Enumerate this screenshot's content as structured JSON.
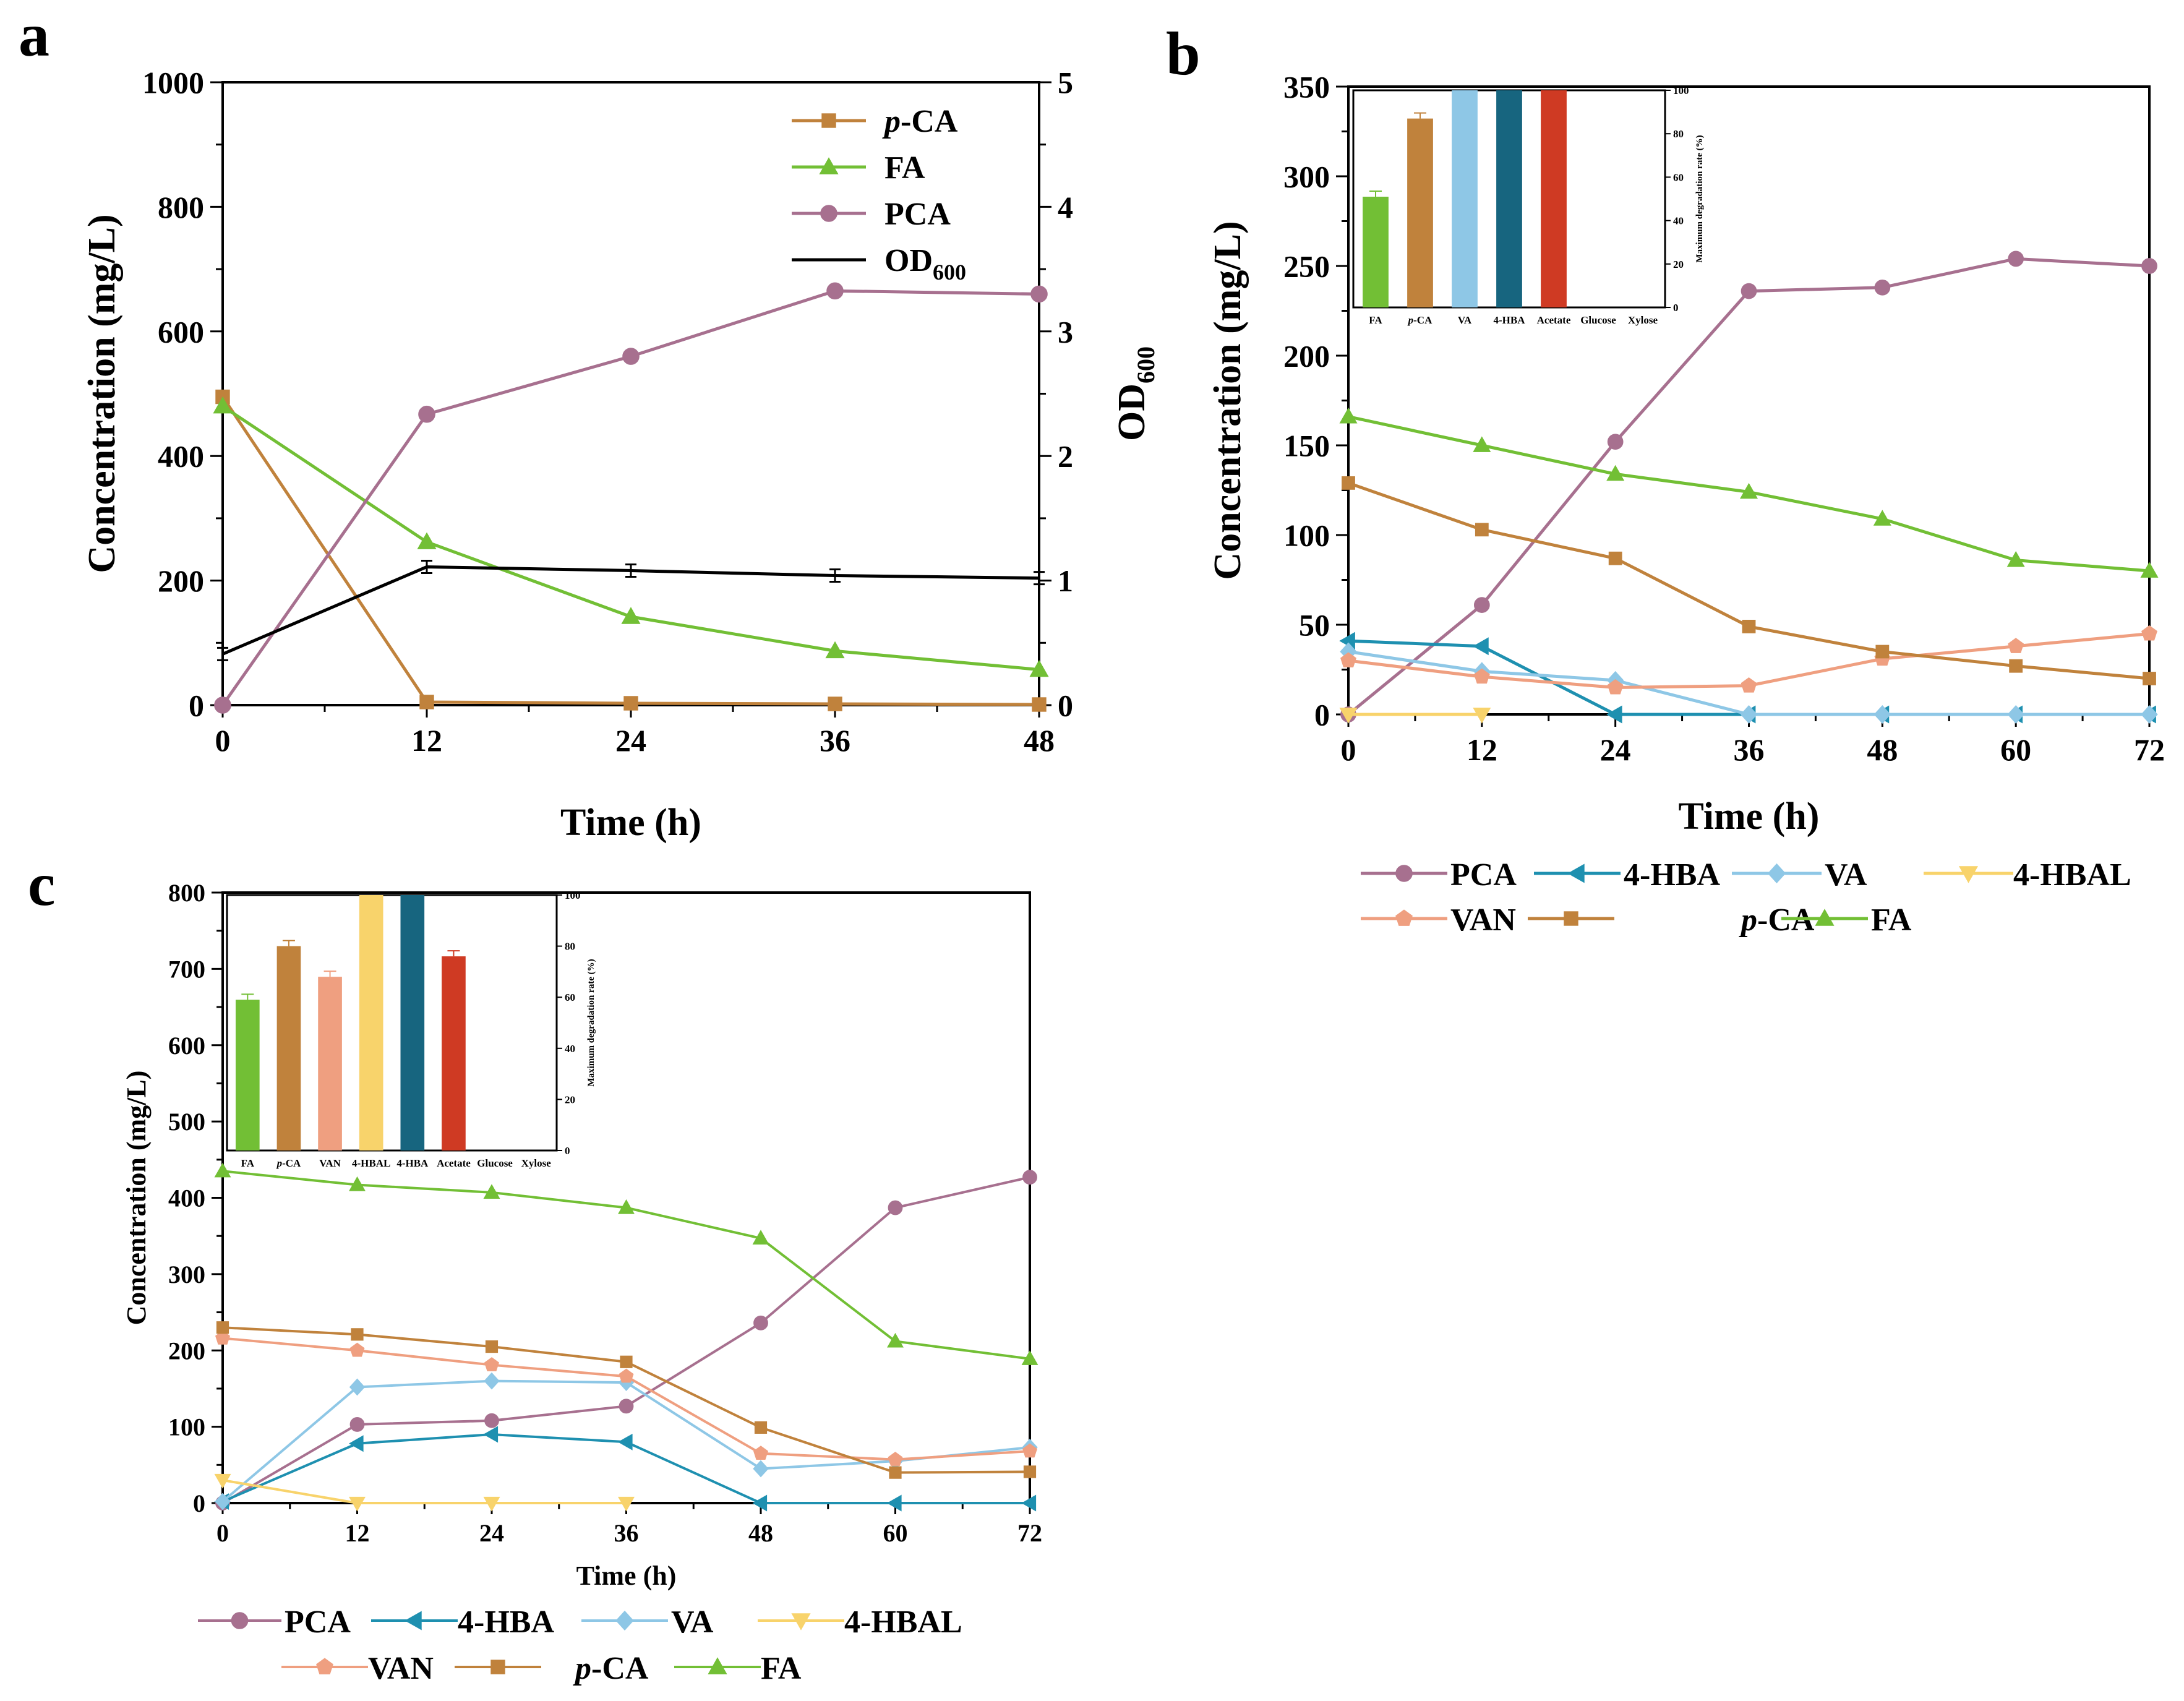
{
  "colors": {
    "p-CA": "#c0823c",
    "FA": "#72bf35",
    "PCA": "#a7708f",
    "OD600": "#000000",
    "4-HBA": "#1e90b0",
    "VA": "#8ec7e6",
    "4-HBAL": "#f8d36b",
    "VAN": "#ef9f80",
    "Acetate": "#cf3a23",
    "4-HBA-bar": "#17657f"
  },
  "chart_data": [
    {
      "panel": "a",
      "type": "line",
      "xlabel": "Time (h)",
      "ylabel": "Concentration (mg/L)",
      "y2label": "OD",
      "y2label_sub": "600",
      "xlim": [
        0,
        48
      ],
      "ylim": [
        0,
        1000
      ],
      "y2lim": [
        0,
        5
      ],
      "xticks": [
        "0",
        "12",
        "24",
        "36",
        "48"
      ],
      "yticks": [
        "0",
        "200",
        "400",
        "600",
        "800",
        "1000"
      ],
      "y2ticks": [
        "0",
        "1",
        "2",
        "3",
        "4",
        "5"
      ],
      "x": [
        0,
        12,
        24,
        36,
        48
      ],
      "series": [
        {
          "name": "p-CA",
          "prefix": "p",
          "rest": "-CA",
          "marker": "square",
          "values": [
            495,
            5,
            3,
            2,
            1
          ]
        },
        {
          "name": "FA",
          "prefix": "",
          "rest": "FA",
          "marker": "triangle-up",
          "values": [
            480,
            262,
            142,
            87,
            57
          ]
        },
        {
          "name": "PCA",
          "prefix": "",
          "rest": "PCA",
          "marker": "circle",
          "values": [
            0,
            467,
            560,
            665,
            660
          ]
        },
        {
          "name": "OD600",
          "prefix": "",
          "rest": "OD",
          "sub": "600",
          "marker": "none",
          "axis": "y2",
          "values": [
            0.41,
            1.11,
            1.08,
            1.04,
            1.02
          ]
        }
      ]
    },
    {
      "panel": "b",
      "type": "line",
      "xlabel": "Time (h)",
      "ylabel": "Concentration (mg/L)",
      "xlim": [
        0,
        72
      ],
      "ylim": [
        0,
        350
      ],
      "xticks": [
        "0",
        "12",
        "24",
        "36",
        "48",
        "60",
        "72"
      ],
      "yticks": [
        "0",
        "50",
        "100",
        "150",
        "200",
        "250",
        "300",
        "350"
      ],
      "x": [
        0,
        12,
        24,
        36,
        48,
        60,
        72
      ],
      "series": [
        {
          "name": "PCA",
          "prefix": "",
          "rest": "PCA",
          "marker": "circle",
          "values": [
            0,
            61,
            152,
            236,
            238,
            254,
            250
          ]
        },
        {
          "name": "4-HBA",
          "prefix": "",
          "rest": "4-HBA",
          "marker": "triangle-left",
          "values": [
            41,
            38,
            0,
            0,
            0,
            0,
            0
          ]
        },
        {
          "name": "VA",
          "prefix": "",
          "rest": "VA",
          "marker": "diamond",
          "values": [
            35,
            24,
            19,
            0,
            0,
            0,
            0
          ]
        },
        {
          "name": "4-HBAL",
          "prefix": "",
          "rest": "4-HBAL",
          "marker": "triangle-down",
          "values": [
            0,
            0,
            null,
            null,
            null,
            null,
            null
          ]
        },
        {
          "name": "VAN",
          "prefix": "",
          "rest": "VAN",
          "marker": "pentagon",
          "values": [
            30,
            21,
            15,
            16,
            31,
            38,
            45
          ]
        },
        {
          "name": "p-CA",
          "prefix": "p",
          "rest": "-CA",
          "marker": "square",
          "values": [
            129,
            103,
            87,
            49,
            35,
            27,
            20
          ]
        },
        {
          "name": "FA",
          "prefix": "",
          "rest": "FA",
          "marker": "triangle-up",
          "values": [
            166,
            150,
            134,
            124,
            109,
            86,
            80
          ]
        }
      ],
      "inset": {
        "type": "bar",
        "ylabel": "Maximum degradation rate (%)",
        "ylim": [
          0,
          100
        ],
        "yticks": [
          "0",
          "20",
          "40",
          "60",
          "80",
          "100"
        ],
        "categories": [
          "FA",
          "p-CA",
          "VA",
          "4-HBA",
          "Acetate",
          "Glucose",
          "Xylose"
        ],
        "values": [
          51,
          87,
          100,
          100,
          100,
          0,
          0
        ]
      }
    },
    {
      "panel": "c",
      "type": "line",
      "xlabel": "Time (h)",
      "ylabel": "Concentration (mg/L)",
      "xlim": [
        0,
        72
      ],
      "ylim": [
        0,
        800
      ],
      "xticks": [
        "0",
        "12",
        "24",
        "36",
        "48",
        "60",
        "72"
      ],
      "yticks": [
        "0",
        "100",
        "200",
        "300",
        "400",
        "500",
        "600",
        "700",
        "800"
      ],
      "x": [
        0,
        12,
        24,
        36,
        48,
        60,
        72
      ],
      "series": [
        {
          "name": "PCA",
          "prefix": "",
          "rest": "PCA",
          "marker": "circle",
          "values": [
            0,
            103,
            108,
            127,
            236,
            387,
            427
          ]
        },
        {
          "name": "4-HBA",
          "prefix": "",
          "rest": "4-HBA",
          "marker": "triangle-left",
          "values": [
            2,
            78,
            90,
            80,
            0,
            0,
            0
          ]
        },
        {
          "name": "VA",
          "prefix": "",
          "rest": "VA",
          "marker": "diamond",
          "values": [
            2,
            152,
            160,
            158,
            45,
            55,
            73
          ]
        },
        {
          "name": "4-HBAL",
          "prefix": "",
          "rest": "4-HBAL",
          "marker": "triangle-down",
          "values": [
            30,
            0,
            0,
            0,
            null,
            null,
            null
          ]
        },
        {
          "name": "VAN",
          "prefix": "",
          "rest": "VAN",
          "marker": "pentagon",
          "values": [
            216,
            200,
            181,
            166,
            65,
            57,
            68
          ]
        },
        {
          "name": "p-CA",
          "prefix": "p",
          "rest": "-CA",
          "marker": "square",
          "values": [
            230,
            221,
            205,
            185,
            99,
            40,
            41
          ]
        },
        {
          "name": "FA",
          "prefix": "",
          "rest": "FA",
          "marker": "triangle-up",
          "values": [
            435,
            417,
            407,
            387,
            347,
            212,
            189
          ]
        }
      ],
      "inset": {
        "type": "bar",
        "ylabel": "Maximum degradation rate (%)",
        "ylim": [
          0,
          100
        ],
        "yticks": [
          "0",
          "20",
          "40",
          "60",
          "80",
          "100"
        ],
        "categories": [
          "FA",
          "p-CA",
          "VAN",
          "4-HBAL",
          "4-HBA",
          "Acetate",
          "Glucose",
          "Xylose"
        ],
        "values": [
          59,
          80,
          68,
          100,
          100,
          76,
          0,
          0
        ]
      }
    }
  ]
}
